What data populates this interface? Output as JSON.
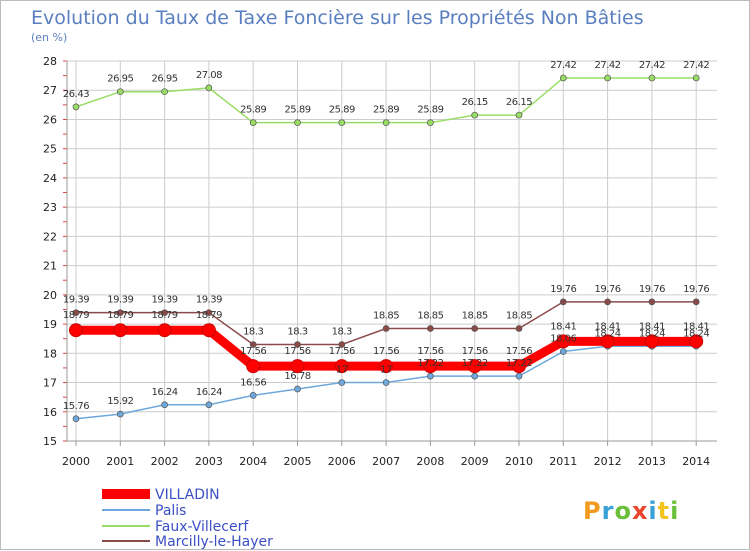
{
  "chart_data": {
    "type": "line",
    "title": "Evolution du Taux de Taxe Foncière sur les Propriétés Non Bâties",
    "unit": "(en %)",
    "xlabel": "",
    "ylabel": "",
    "x": [
      "2000",
      "2001",
      "2002",
      "2003",
      "2004",
      "2005",
      "2006",
      "2007",
      "2008",
      "2009",
      "2010",
      "2011",
      "2012",
      "2013",
      "2014"
    ],
    "ylim": [
      15,
      28
    ],
    "yticks": [
      "15",
      "16",
      "17",
      "18",
      "19",
      "20",
      "21",
      "22",
      "23",
      "24",
      "25",
      "26",
      "27",
      "28"
    ],
    "grid": true,
    "legend_position": "bottom-left",
    "series": [
      {
        "name": "VILLADIN",
        "color": "#ff0000",
        "values": [
          18.79,
          18.79,
          18.79,
          18.79,
          17.56,
          17.56,
          17.56,
          17.56,
          17.56,
          17.56,
          17.56,
          18.41,
          18.41,
          18.41,
          18.41
        ],
        "labels": [
          "18.79",
          "18.79",
          "18.79",
          "18.79",
          "17.56",
          "17.56",
          "17.56",
          "17.56",
          "17.56",
          "17.56",
          "17.56",
          "18.41",
          "18.41",
          "18.41",
          "18.41"
        ]
      },
      {
        "name": "Palis",
        "color": "#6fa8dc",
        "values": [
          15.76,
          15.92,
          16.24,
          16.24,
          16.56,
          16.78,
          17,
          17,
          17.22,
          17.22,
          17.22,
          18.06,
          18.24,
          18.24,
          18.24
        ],
        "labels": [
          "15.76",
          "15.92",
          "16.24",
          "16.24",
          "16.56",
          "16.78",
          "17",
          "17",
          "17.22",
          "17.22",
          "17.22",
          "18.06",
          "18.24",
          "18.24",
          "18.24"
        ]
      },
      {
        "name": "Faux-Villecerf",
        "color": "#99dd66",
        "values": [
          26.43,
          26.95,
          26.95,
          27.08,
          25.89,
          25.89,
          25.89,
          25.89,
          25.89,
          26.15,
          26.15,
          27.42,
          27.42,
          27.42,
          27.42
        ],
        "labels": [
          "26.43",
          "26.95",
          "26.95",
          "27.08",
          "25.89",
          "25.89",
          "25.89",
          "25.89",
          "25.89",
          "26.15",
          "26.15",
          "27.42",
          "27.42",
          "27.42",
          "27.42"
        ]
      },
      {
        "name": "Marcilly-le-Hayer",
        "color": "#8b4a4a",
        "values": [
          19.39,
          19.39,
          19.39,
          19.39,
          18.3,
          18.3,
          18.3,
          18.85,
          18.85,
          18.85,
          18.85,
          19.76,
          19.76,
          19.76,
          19.76
        ],
        "labels": [
          "19.39",
          "19.39",
          "19.39",
          "19.39",
          "18.3",
          "18.3",
          "18.3",
          "18.85",
          "18.85",
          "18.85",
          "18.85",
          "19.76",
          "19.76",
          "19.76",
          "19.76"
        ]
      }
    ]
  },
  "logo": {
    "text": "Proxiti"
  }
}
